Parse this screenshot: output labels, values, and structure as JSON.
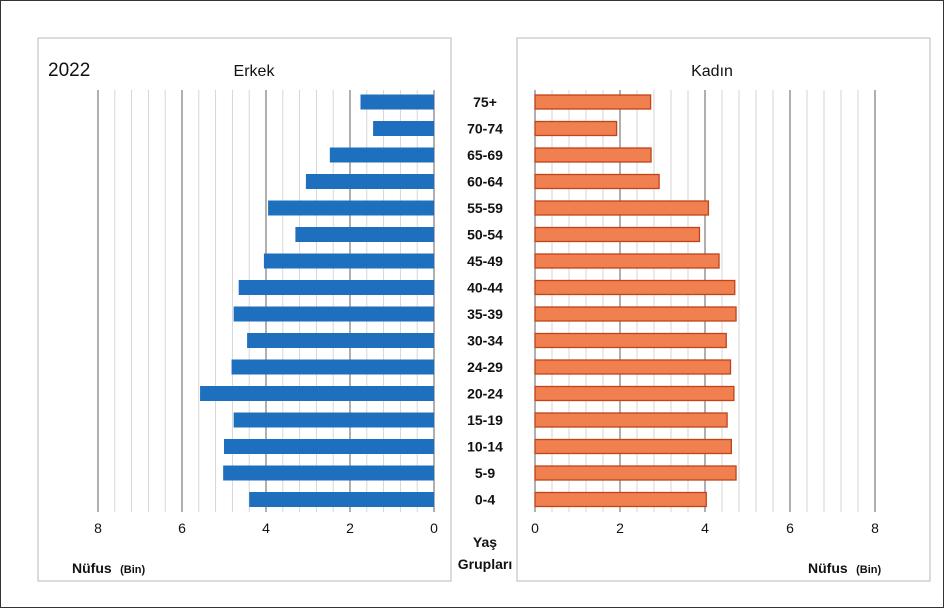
{
  "chart_data": {
    "type": "bar",
    "year": "2022",
    "center_axis_label_line1": "Yaş",
    "center_axis_label_line2": "Grupları",
    "categories": [
      "75+",
      "70-74",
      "65-69",
      "60-64",
      "55-59",
      "50-54",
      "45-49",
      "40-44",
      "35-39",
      "30-34",
      "24-29",
      "20-24",
      "15-19",
      "10-14",
      "5-9",
      "0-4"
    ],
    "series": [
      {
        "name": "Erkek",
        "color": "#1f6fbf",
        "values": [
          1.75,
          1.45,
          2.48,
          3.05,
          3.95,
          3.3,
          4.05,
          4.65,
          4.77,
          4.45,
          4.82,
          5.57,
          4.77,
          5.0,
          5.02,
          4.4
        ]
      },
      {
        "name": "Kadın",
        "color": "#f08050",
        "stroke": "#c0441a",
        "values": [
          2.72,
          1.92,
          2.73,
          2.92,
          4.08,
          3.87,
          4.33,
          4.7,
          4.73,
          4.5,
          4.6,
          4.68,
          4.52,
          4.62,
          4.73,
          4.03
        ]
      }
    ],
    "x_ticks": [
      "8",
      "6",
      "4",
      "2",
      "0"
    ],
    "x_ticks_right": [
      "0",
      "2",
      "4",
      "6",
      "8"
    ],
    "xlim": [
      0,
      8
    ],
    "xlabel_left": "Nüfus",
    "xlabel_left_unit": "(Bin)",
    "xlabel_right": "Nüfus",
    "xlabel_right_unit": "(Bin)",
    "grid": true,
    "minor_grid_step": 0.4,
    "major_grid_step": 2
  }
}
